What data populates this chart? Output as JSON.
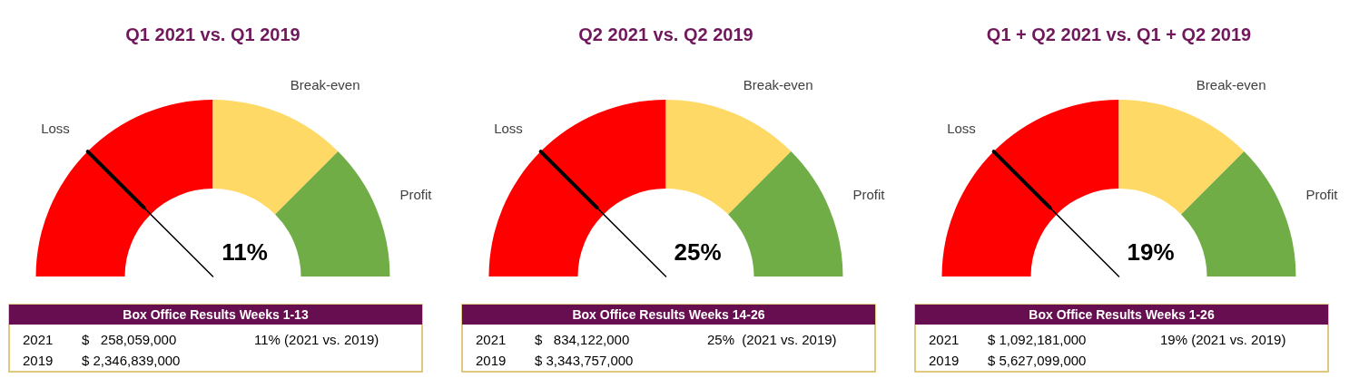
{
  "chart_data": [
    {
      "type": "donut",
      "title": "Q1 2021 vs. Q1 2019",
      "categories": [
        "Loss",
        "Break-even",
        "Profit"
      ],
      "values": [
        50,
        25,
        25
      ],
      "colors": [
        "#ff0000",
        "#ffd966",
        "#70ad47"
      ],
      "needle": "Loss",
      "annotations": [
        "11%",
        "Box Office Results Weeks 1-13",
        "2021",
        "$   258,059,000",
        "11% (2021 vs. 2019)",
        "2019",
        "$ 2,346,839,000"
      ]
    },
    {
      "type": "donut",
      "title": "Q2 2021 vs. Q2 2019",
      "categories": [
        "Loss",
        "Break-even",
        "Profit"
      ],
      "values": [
        50,
        25,
        25
      ],
      "colors": [
        "#ff0000",
        "#ffd966",
        "#70ad47"
      ],
      "needle": "Loss",
      "annotations": [
        "25%",
        "Box Office Results Weeks 14-26",
        "2021",
        "$   834,122,000",
        "25%  (2021 vs. 2019)",
        "2019",
        "$ 3,343,757,000"
      ]
    },
    {
      "type": "donut",
      "title": "Q1 + Q2 2021 vs. Q1 + Q2 2019",
      "categories": [
        "Loss",
        "Break-even",
        "Profit"
      ],
      "values": [
        50,
        25,
        25
      ],
      "colors": [
        "#ff0000",
        "#ffd966",
        "#70ad47"
      ],
      "needle": "Loss",
      "annotations": [
        "19%",
        "Box Office Results Weeks 1-26",
        "2021",
        "$ 1,092,181,000",
        "19% (2021 vs. 2019)",
        "2019",
        "$ 5,627,099,000"
      ]
    }
  ]
}
